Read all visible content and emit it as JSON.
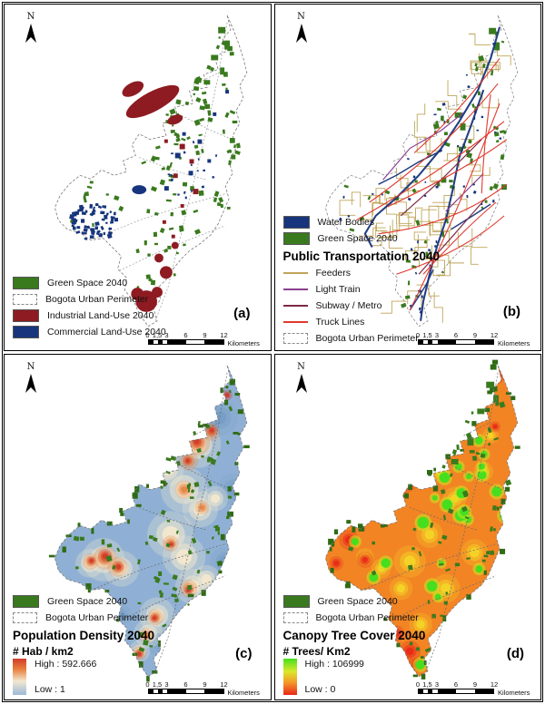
{
  "north_label": "N",
  "scalebar": {
    "ticks": [
      "0",
      "1,5",
      "3",
      "6",
      "9",
      "12"
    ],
    "unit": "Kilometers"
  },
  "colors": {
    "green_space": "#3a7a1e",
    "green_dark": "#2f6b14",
    "industrial": "#8e1b21",
    "commercial": "#17357c",
    "water": "#17357c",
    "feeders": "#bfa558",
    "light_train": "#8a3f8f",
    "subway": "#7d2a45",
    "truck": "#e0392e",
    "perimeter_dash": "#8a8a8a",
    "pop_high": "#d23b2a",
    "pop_mid": "#f2e8cf",
    "pop_low": "#9db9d8",
    "pop_base": "#8fb0d4",
    "tree_high": "#46df1f",
    "tree_mid": "#f5d927",
    "tree_low": "#e8291a",
    "tree_base": "#f28424"
  },
  "panels": {
    "a": {
      "label": "(a)",
      "legend": {
        "green": "Green Space 2040",
        "perimeter": "Bogota Urban Perimeter",
        "industrial": "Industrial Land-Use 2040",
        "commercial": "Commercial Land-Use 2040"
      }
    },
    "b": {
      "label": "(b)",
      "legend": {
        "water": "Water Bodies",
        "green": "Green Space 2040",
        "header": "Public Transportation 2040",
        "feeders": "Feeders",
        "light_train": "Light Train",
        "subway": "Subway / Metro",
        "truck": "Truck Lines",
        "perimeter": "Bogota Urban Perimeter"
      }
    },
    "c": {
      "label": "(c)",
      "legend": {
        "green": "Green Space 2040",
        "perimeter": "Bogota Urban Perimeter",
        "header": "Population Density 2040",
        "unit": "# Hab / km2",
        "high": "High : 592.666",
        "low": "Low : 1"
      }
    },
    "d": {
      "label": "(d)",
      "legend": {
        "green": "Green Space 2040",
        "perimeter": "Bogota Urban Perimeter",
        "header": "Canopy Tree Cover 2040",
        "unit": "# Trees/ Km2",
        "high": "High : 106999",
        "low": "Low : 0"
      }
    }
  }
}
